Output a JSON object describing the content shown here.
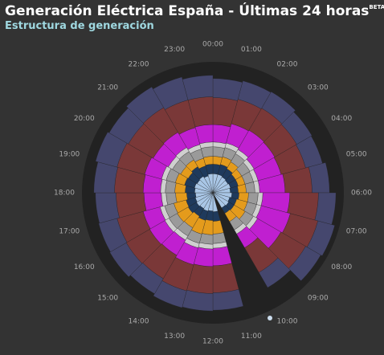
{
  "chart_data": {
    "type": "radial-stacked",
    "title": "Generación Eléctrica España - Últimas 24 horas",
    "title_superscript": "BETA",
    "subtitle": "Estructura de generación",
    "categories": [
      "00:00",
      "01:00",
      "02:00",
      "03:00",
      "04:00",
      "05:00",
      "06:00",
      "07:00",
      "08:00",
      "09:00",
      "10:00",
      "11:00",
      "12:00",
      "13:00",
      "14:00",
      "15:00",
      "16:00",
      "17:00",
      "18:00",
      "19:00",
      "20:00",
      "21:00",
      "22:00",
      "23:00"
    ],
    "rlim": [
      0,
      165
    ],
    "series": [
      {
        "color": "#a9c6e6",
        "values": [
          24,
          24,
          23,
          22,
          23,
          22,
          24,
          22,
          23,
          22,
          null,
          24,
          23,
          24,
          23,
          24,
          23,
          22,
          23,
          24,
          23,
          24,
          22,
          24
        ]
      },
      {
        "color": "#1f3a5c",
        "values": [
          12,
          13,
          12,
          11,
          10,
          10,
          9,
          9,
          8,
          8,
          null,
          12,
          12,
          12,
          11,
          12,
          12,
          11,
          12,
          13,
          13,
          14,
          13,
          12
        ]
      },
      {
        "color": "#e49b1c",
        "values": [
          10,
          10,
          10,
          9,
          9,
          10,
          12,
          14,
          16,
          12,
          null,
          16,
          18,
          18,
          17,
          16,
          16,
          14,
          13,
          12,
          11,
          10,
          10,
          10
        ]
      },
      {
        "color": "#9a9a9a",
        "values": [
          12,
          12,
          12,
          12,
          11,
          11,
          12,
          12,
          12,
          12,
          null,
          12,
          12,
          12,
          12,
          12,
          12,
          12,
          12,
          12,
          12,
          12,
          12,
          12
        ]
      },
      {
        "color": "#cfcfcf",
        "values": [
          6,
          6,
          6,
          6,
          6,
          6,
          6,
          6,
          6,
          6,
          null,
          6,
          6,
          6,
          6,
          6,
          6,
          6,
          6,
          6,
          6,
          6,
          6,
          6
        ]
      },
      {
        "color": "#c01fd0",
        "values": [
          22,
          25,
          28,
          30,
          30,
          32,
          34,
          38,
          34,
          20,
          null,
          22,
          22,
          22,
          22,
          22,
          22,
          22,
          22,
          22,
          22,
          22,
          22,
          22
        ]
      },
      {
        "color": "#7a3838",
        "values": [
          34,
          32,
          32,
          32,
          32,
          34,
          36,
          36,
          36,
          36,
          null,
          34,
          34,
          34,
          34,
          34,
          34,
          35,
          36,
          36,
          36,
          36,
          36,
          35
        ]
      },
      {
        "color": "#45476e",
        "values": [
          24,
          24,
          24,
          22,
          22,
          22,
          22,
          22,
          22,
          22,
          null,
          22,
          22,
          22,
          22,
          24,
          24,
          26,
          26,
          28,
          28,
          30,
          30,
          27
        ]
      }
    ]
  }
}
